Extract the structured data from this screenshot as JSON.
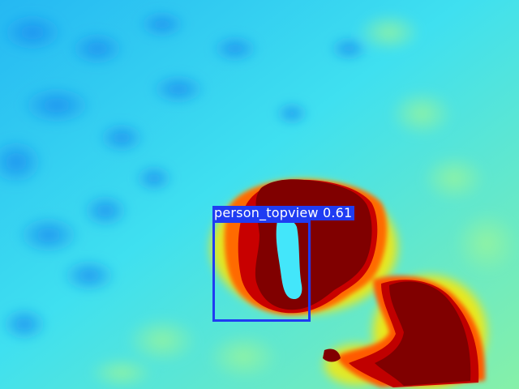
{
  "image": {
    "description_colors": {
      "background_cool": "#3fe4f0",
      "background_blue": "#1fa4f0",
      "background_green": "#7ff2b0",
      "hot_dark": "#800000",
      "hot_red": "#d00000",
      "hot_orange": "#ff7000",
      "hot_yellow": "#f8f000",
      "cold_core": "#40e8ff"
    }
  },
  "detection": {
    "label": "person_topview 0.61",
    "class": "person_topview",
    "confidence": 0.61,
    "box_color": "#1f3cf2"
  }
}
